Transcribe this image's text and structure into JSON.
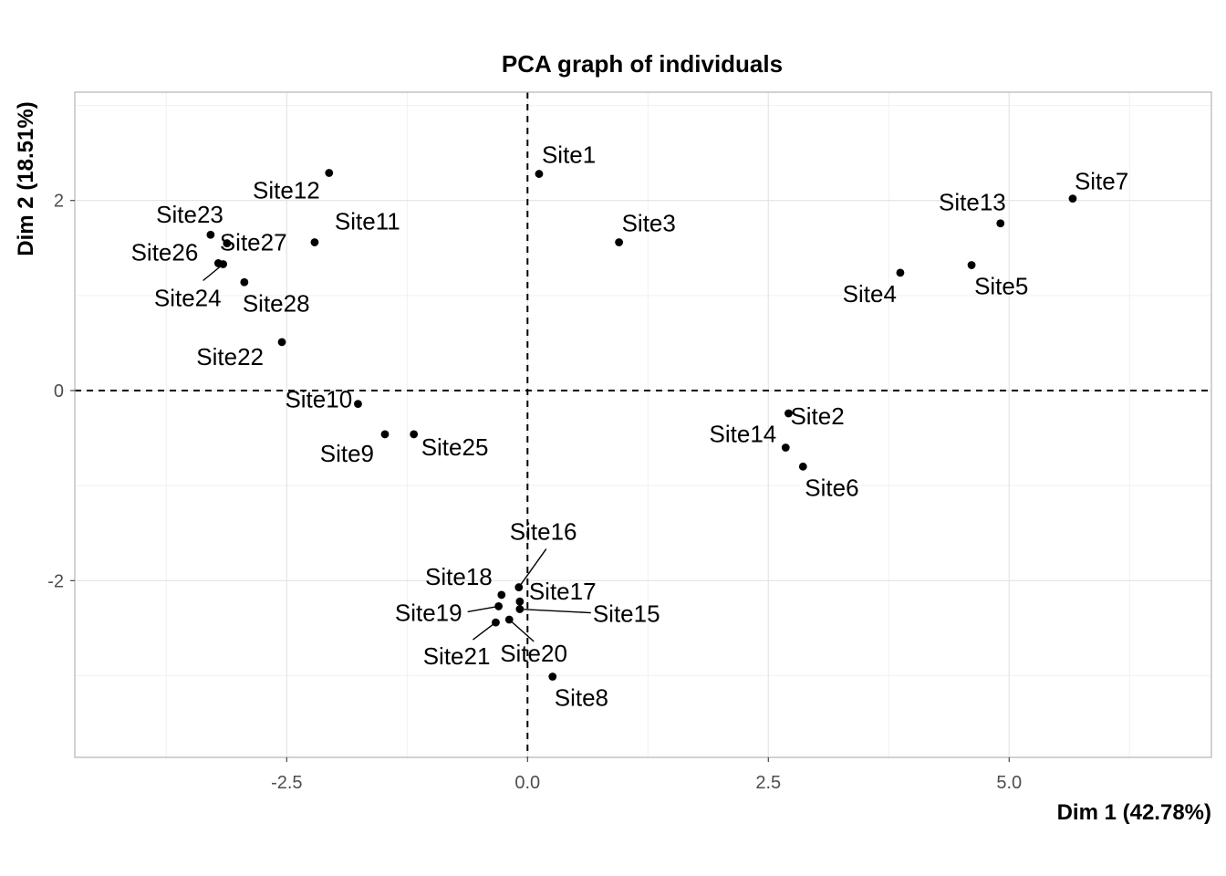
{
  "chart_data": {
    "type": "scatter",
    "title": "PCA graph of individuals",
    "xlabel": "Dim 1 (42.78%)",
    "ylabel": "Dim 2 (18.51%)",
    "xlim": [
      -4.7,
      7.1
    ],
    "ylim": [
      -3.86,
      3.14
    ],
    "x_ticks": [
      -2.5,
      0,
      2.5,
      5
    ],
    "x_tick_labels": [
      "-2.5",
      "0.0",
      "2.5",
      "5.0"
    ],
    "y_ticks": [
      -2,
      0,
      2
    ],
    "y_tick_labels": [
      "-2",
      "0",
      "2"
    ],
    "grid": true,
    "reference_lines": {
      "x": 0,
      "y": 0,
      "style": "dashed"
    },
    "points": [
      {
        "label": "Site1",
        "x": 0.12,
        "y": 2.28
      },
      {
        "label": "Site2",
        "x": 2.71,
        "y": -0.24
      },
      {
        "label": "Site3",
        "x": 0.95,
        "y": 1.56
      },
      {
        "label": "Site4",
        "x": 3.87,
        "y": 1.24
      },
      {
        "label": "Site5",
        "x": 4.61,
        "y": 1.32
      },
      {
        "label": "Site6",
        "x": 2.86,
        "y": -0.8
      },
      {
        "label": "Site7",
        "x": 5.66,
        "y": 2.02
      },
      {
        "label": "Site8",
        "x": 0.26,
        "y": -3.01
      },
      {
        "label": "Site9",
        "x": -1.48,
        "y": -0.46
      },
      {
        "label": "Site10",
        "x": -1.76,
        "y": -0.14
      },
      {
        "label": "Site11",
        "x": -2.21,
        "y": 1.56
      },
      {
        "label": "Site12",
        "x": -2.06,
        "y": 2.29
      },
      {
        "label": "Site13",
        "x": 4.91,
        "y": 1.76
      },
      {
        "label": "Site14",
        "x": 2.68,
        "y": -0.6
      },
      {
        "label": "Site15",
        "x": -0.08,
        "y": -2.3
      },
      {
        "label": "Site16",
        "x": -0.09,
        "y": -2.07
      },
      {
        "label": "Site17",
        "x": -0.08,
        "y": -2.22
      },
      {
        "label": "Site18",
        "x": -0.27,
        "y": -2.15
      },
      {
        "label": "Site19",
        "x": -0.3,
        "y": -2.27
      },
      {
        "label": "Site20",
        "x": -0.19,
        "y": -2.41
      },
      {
        "label": "Site21",
        "x": -0.33,
        "y": -2.44
      },
      {
        "label": "Site22",
        "x": -2.55,
        "y": 0.51
      },
      {
        "label": "Site23",
        "x": -3.29,
        "y": 1.64
      },
      {
        "label": "Site24",
        "x": -3.16,
        "y": 1.33
      },
      {
        "label": "Site25",
        "x": -1.18,
        "y": -0.46
      },
      {
        "label": "Site26",
        "x": -3.21,
        "y": 1.34
      },
      {
        "label": "Site27",
        "x": -3.12,
        "y": 1.55
      },
      {
        "label": "Site28",
        "x": -2.94,
        "y": 1.14
      }
    ]
  }
}
